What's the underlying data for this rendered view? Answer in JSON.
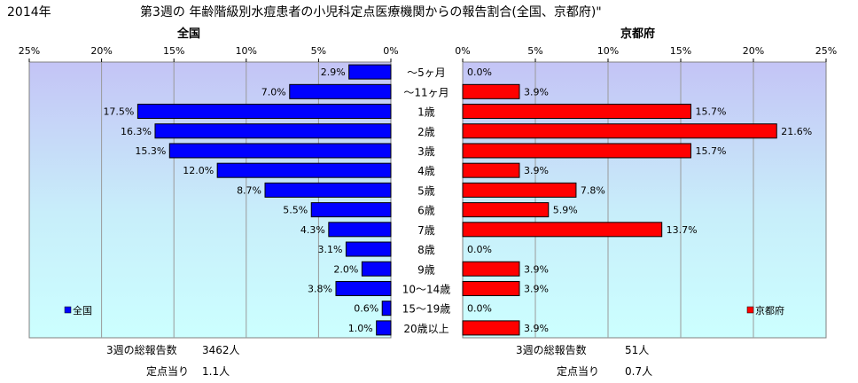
{
  "year_label": "2014年",
  "title": "第3週の 年齢階級別水痘患者の小児科定点医療機関からの報告割合(全国、京都府)\"",
  "chart_data": {
    "type": "bar",
    "orientation": "horizontal",
    "categories": [
      "～5ヶ月",
      "～11ヶ月",
      "1歳",
      "2歳",
      "3歳",
      "4歳",
      "5歳",
      "6歳",
      "7歳",
      "8歳",
      "9歳",
      "10～14歳",
      "15～19歳",
      "20歳以上"
    ],
    "xlim": [
      0,
      25
    ],
    "ticks": [
      "0%",
      "5%",
      "10%",
      "15%",
      "20%",
      "25%"
    ],
    "tick_values": [
      0,
      5,
      10,
      15,
      20,
      25
    ],
    "grid": true,
    "panels": [
      {
        "title": "全国",
        "series_name": "全国",
        "direction": "left",
        "color": "#0000ff",
        "values": [
          2.9,
          7.0,
          17.5,
          16.3,
          15.3,
          12.0,
          8.7,
          5.5,
          4.3,
          3.1,
          2.0,
          3.8,
          0.6,
          1.0
        ],
        "data_labels": [
          "2.9%",
          "7.0%",
          "17.5%",
          "16.3%",
          "15.3%",
          "12.0%",
          "8.7%",
          "5.5%",
          "4.3%",
          "3.1%",
          "2.0%",
          "3.8%",
          "0.6%",
          "1.0%"
        ],
        "legend_position": "bottom-left"
      },
      {
        "title": "京都府",
        "series_name": "京都府",
        "direction": "right",
        "color": "#ff0000",
        "values": [
          0.0,
          3.9,
          15.7,
          21.6,
          15.7,
          3.9,
          7.8,
          5.9,
          13.7,
          0.0,
          3.9,
          3.9,
          0.0,
          3.9
        ],
        "data_labels": [
          "0.0%",
          "3.9%",
          "15.7%",
          "21.6%",
          "15.7%",
          "3.9%",
          "7.8%",
          "5.9%",
          "13.7%",
          "0.0%",
          "3.9%",
          "3.9%",
          "0.0%",
          "3.9%"
        ],
        "legend_position": "bottom-right"
      }
    ]
  },
  "footer": {
    "national": {
      "total_label": "3週の総報告数",
      "total_value": "3462人",
      "per_label": "定点当り",
      "per_value": "1.1人"
    },
    "kyoto": {
      "total_label": "3週の総報告数",
      "total_value": "51人",
      "per_label": "定点当り",
      "per_value": "0.7人"
    }
  }
}
